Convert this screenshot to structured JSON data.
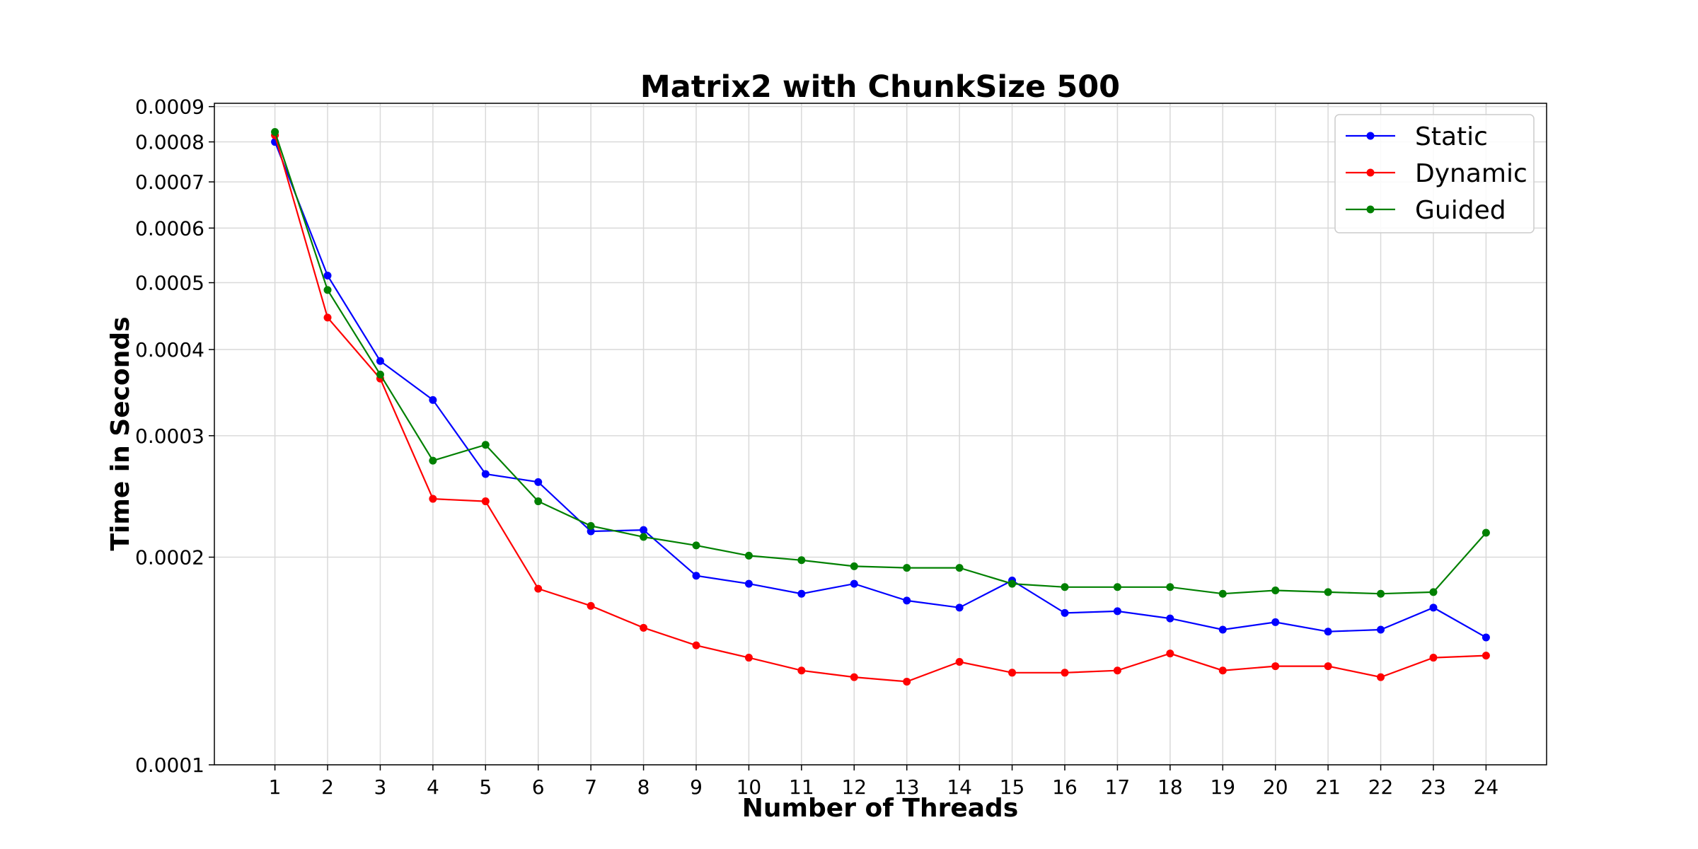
{
  "chart_data": {
    "type": "line",
    "title": "Matrix2 with ChunkSize 500",
    "xlabel": "Number of Threads",
    "ylabel": "Time in Seconds",
    "x": [
      1,
      2,
      3,
      4,
      5,
      6,
      7,
      8,
      9,
      10,
      11,
      12,
      13,
      14,
      15,
      16,
      17,
      18,
      19,
      20,
      21,
      22,
      23,
      24
    ],
    "xlim": [
      -0.15,
      25.15
    ],
    "ylim": [
      0.0001,
      0.00091
    ],
    "yscale": "log",
    "yticks": [
      "0.0009",
      "0.0008",
      "0.0007",
      "0.0006",
      "0.0005",
      "0.0004",
      "0.0003",
      "0.0002",
      "0.0001"
    ],
    "ytick_values": [
      0.0009,
      0.0008,
      0.0007,
      0.0006,
      0.0005,
      0.0004,
      0.0003,
      0.0002,
      0.0001
    ],
    "xticks": [
      "1",
      "2",
      "3",
      "4",
      "5",
      "6",
      "7",
      "8",
      "9",
      "10",
      "11",
      "12",
      "13",
      "14",
      "15",
      "16",
      "17",
      "18",
      "19",
      "20",
      "21",
      "22",
      "23",
      "24"
    ],
    "grid": true,
    "legend_position": "top-right",
    "series": [
      {
        "name": "Static",
        "color": "#0000ff",
        "values": [
          0.0008,
          0.000512,
          0.000385,
          0.000338,
          0.000264,
          0.000257,
          0.000218,
          0.000219,
          0.000188,
          0.000183,
          0.000177,
          0.000183,
          0.000173,
          0.000169,
          0.000185,
          0.000166,
          0.000167,
          0.000163,
          0.000157,
          0.000161,
          0.000156,
          0.000157,
          0.000169,
          0.000153
        ]
      },
      {
        "name": "Dynamic",
        "color": "#ff0000",
        "values": [
          0.000818,
          0.000445,
          0.000363,
          0.000243,
          0.000241,
          0.00018,
          0.00017,
          0.000158,
          0.000149,
          0.000143,
          0.000137,
          0.000134,
          0.000132,
          0.000141,
          0.000136,
          0.000136,
          0.000137,
          0.000145,
          0.000137,
          0.000139,
          0.000139,
          0.000134,
          0.000143,
          0.000144
        ]
      },
      {
        "name": "Guided",
        "color": "#008000",
        "values": [
          0.000827,
          0.000488,
          0.000368,
          0.000276,
          0.000291,
          0.000241,
          0.000222,
          0.000214,
          0.000208,
          0.000201,
          0.000198,
          0.000194,
          0.000193,
          0.000193,
          0.000183,
          0.000181,
          0.000181,
          0.000181,
          0.000177,
          0.000179,
          0.000178,
          0.000177,
          0.000178,
          0.000217
        ]
      }
    ]
  }
}
